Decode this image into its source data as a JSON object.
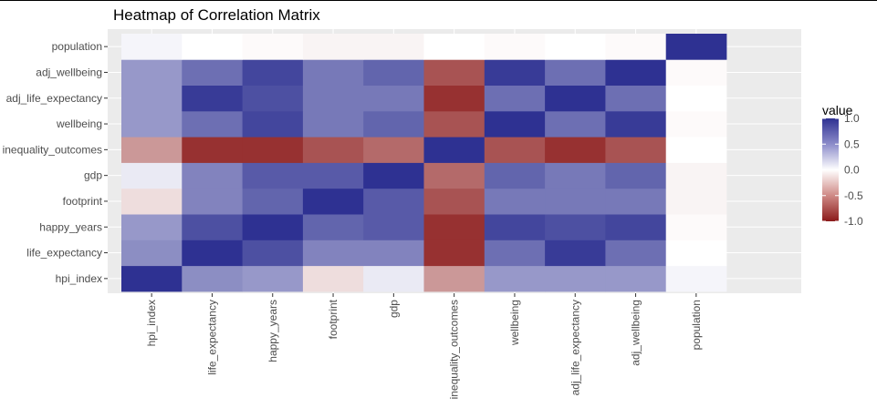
{
  "chart_data": {
    "type": "heatmap",
    "title": "Heatmap of Correlation Matrix",
    "xlabel": "",
    "ylabel": "",
    "x_categories": [
      "hpi_index",
      "life_expectancy",
      "happy_years",
      "footprint",
      "gdp",
      "inequality_outcomes",
      "wellbeing",
      "adj_life_expectancy",
      "adj_wellbeing",
      "population"
    ],
    "y_categories": [
      "hpi_index",
      "life_expectancy",
      "happy_years",
      "footprint",
      "gdp",
      "inequality_outcomes",
      "wellbeing",
      "adj_life_expectancy",
      "adj_wellbeing",
      "population"
    ],
    "values": [
      [
        1.0,
        0.55,
        0.5,
        -0.15,
        0.1,
        -0.45,
        0.5,
        0.5,
        0.5,
        0.05
      ],
      [
        0.55,
        1.0,
        0.85,
        0.6,
        0.6,
        -0.9,
        0.7,
        0.95,
        0.7,
        0.0
      ],
      [
        0.5,
        0.85,
        1.0,
        0.75,
        0.8,
        -0.9,
        0.9,
        0.85,
        0.9,
        -0.02
      ],
      [
        -0.15,
        0.6,
        0.75,
        1.0,
        0.8,
        -0.75,
        0.65,
        0.65,
        0.65,
        -0.05
      ],
      [
        0.1,
        0.6,
        0.8,
        0.8,
        1.0,
        -0.65,
        0.75,
        0.65,
        0.75,
        -0.05
      ],
      [
        -0.45,
        -0.9,
        -0.9,
        -0.75,
        -0.65,
        1.0,
        -0.75,
        -0.9,
        -0.75,
        0.0
      ],
      [
        0.5,
        0.7,
        0.9,
        0.65,
        0.75,
        -0.75,
        1.0,
        0.7,
        0.95,
        -0.02
      ],
      [
        0.5,
        0.95,
        0.85,
        0.65,
        0.65,
        -0.9,
        0.7,
        1.0,
        0.7,
        0.0
      ],
      [
        0.5,
        0.7,
        0.9,
        0.65,
        0.75,
        -0.75,
        0.95,
        0.7,
        1.0,
        -0.02
      ],
      [
        0.05,
        0.0,
        -0.02,
        -0.05,
        -0.05,
        0.0,
        -0.02,
        0.0,
        -0.02,
        1.0
      ]
    ],
    "color_scale": {
      "low": "#8b1a1a",
      "mid": "#ffffff",
      "high": "#2e3192",
      "limits": [
        -1,
        1
      ]
    },
    "legend": {
      "title": "value",
      "position": "right",
      "breaks": [
        "1.0",
        "0.5",
        "0.0",
        "-0.5",
        "-1.0"
      ],
      "break_values": [
        1.0,
        0.5,
        0.0,
        -0.5,
        -1.0
      ]
    },
    "panel_background": "#ebebeb",
    "grid": true
  }
}
